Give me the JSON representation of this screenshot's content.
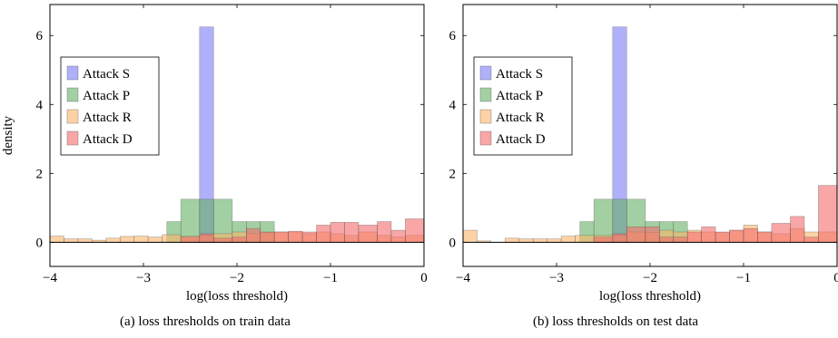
{
  "chart_data": [
    {
      "type": "histogram",
      "caption": "(a) loss thresholds on train data",
      "xlabel": "log(loss threshold)",
      "ylabel": "density",
      "xlim": [
        -4,
        0
      ],
      "ylim": [
        -0.7,
        6.9
      ],
      "xticks": [
        -4,
        -3,
        -2,
        -1,
        0
      ],
      "xtick_labels": [
        "−4",
        "−3",
        "−2",
        "−1",
        "0"
      ],
      "yticks": [
        0,
        2,
        4,
        6
      ],
      "ytick_labels": [
        "0",
        "2",
        "4",
        "6"
      ],
      "legend_position": "left",
      "series": [
        {
          "name": "Attack S",
          "color": "#7b7bf7",
          "bins": [
            [
              -2.4,
              -2.25,
              6.25
            ]
          ]
        },
        {
          "name": "Attack P",
          "color": "#66b066",
          "bins": [
            [
              -2.75,
              -2.6,
              0.6
            ],
            [
              -2.6,
              -2.4,
              1.25
            ],
            [
              -2.4,
              -2.25,
              1.25
            ],
            [
              -2.25,
              -2.05,
              1.25
            ],
            [
              -2.05,
              -1.9,
              0.6
            ],
            [
              -1.9,
              -1.75,
              0.6
            ],
            [
              -1.75,
              -1.6,
              0.6
            ]
          ]
        },
        {
          "name": "Attack R",
          "color": "#fcb56b",
          "bins": [
            [
              -4.0,
              -3.85,
              0.18
            ],
            [
              -3.85,
              -3.7,
              0.1
            ],
            [
              -3.7,
              -3.55,
              0.1
            ],
            [
              -3.55,
              -3.4,
              0.06
            ],
            [
              -3.4,
              -3.25,
              0.12
            ],
            [
              -3.25,
              -3.1,
              0.17
            ],
            [
              -3.1,
              -2.95,
              0.18
            ],
            [
              -2.95,
              -2.8,
              0.15
            ],
            [
              -2.8,
              -2.6,
              0.22
            ],
            [
              -2.6,
              -2.4,
              0.18
            ],
            [
              -2.4,
              -2.25,
              0.2
            ],
            [
              -2.25,
              -2.05,
              0.25
            ],
            [
              -2.05,
              -1.9,
              0.3
            ],
            [
              -1.9,
              -1.75,
              0.25
            ],
            [
              -1.75,
              -1.6,
              0.28
            ],
            [
              -1.6,
              -1.45,
              0.3
            ],
            [
              -1.45,
              -1.3,
              0.3
            ],
            [
              -1.3,
              -1.15,
              0.25
            ],
            [
              -1.15,
              -1.0,
              0.3
            ],
            [
              -1.0,
              -0.85,
              0.25
            ],
            [
              -0.85,
              -0.7,
              0.2
            ],
            [
              -0.7,
              -0.5,
              0.3
            ],
            [
              -0.5,
              -0.35,
              0.2
            ],
            [
              -0.35,
              -0.2,
              0.15
            ],
            [
              -0.2,
              0.0,
              0.2
            ]
          ]
        },
        {
          "name": "Attack D",
          "color": "#f46a6a",
          "bins": [
            [
              -2.6,
              -2.4,
              0.15
            ],
            [
              -2.4,
              -2.25,
              0.25
            ],
            [
              -2.25,
              -2.05,
              0.12
            ],
            [
              -2.05,
              -1.9,
              0.15
            ],
            [
              -1.9,
              -1.75,
              0.4
            ],
            [
              -1.75,
              -1.6,
              0.3
            ],
            [
              -1.6,
              -1.45,
              0.3
            ],
            [
              -1.45,
              -1.3,
              0.32
            ],
            [
              -1.3,
              -1.15,
              0.3
            ],
            [
              -1.15,
              -1.0,
              0.5
            ],
            [
              -1.0,
              -0.85,
              0.58
            ],
            [
              -0.85,
              -0.7,
              0.58
            ],
            [
              -0.7,
              -0.5,
              0.5
            ],
            [
              -0.5,
              -0.35,
              0.6
            ],
            [
              -0.35,
              -0.2,
              0.35
            ],
            [
              -0.2,
              0.0,
              0.68
            ]
          ]
        }
      ]
    },
    {
      "type": "histogram",
      "caption": "(b) loss thresholds on test data",
      "xlabel": "log(loss threshold)",
      "ylabel": "",
      "xlim": [
        -4,
        0
      ],
      "ylim": [
        -0.7,
        6.9
      ],
      "xticks": [
        -4,
        -3,
        -2,
        -1,
        0
      ],
      "xtick_labels": [
        "−4",
        "−3",
        "−2",
        "−1",
        "0"
      ],
      "yticks": [
        0,
        2,
        4,
        6
      ],
      "ytick_labels": [
        "0",
        "2",
        "4",
        "6"
      ],
      "legend_position": "left",
      "series": [
        {
          "name": "Attack S",
          "color": "#7b7bf7",
          "bins": [
            [
              -2.4,
              -2.25,
              6.25
            ]
          ]
        },
        {
          "name": "Attack P",
          "color": "#66b066",
          "bins": [
            [
              -2.75,
              -2.6,
              0.6
            ],
            [
              -2.6,
              -2.4,
              1.25
            ],
            [
              -2.4,
              -2.25,
              1.25
            ],
            [
              -2.25,
              -2.05,
              1.25
            ],
            [
              -2.05,
              -1.9,
              0.6
            ],
            [
              -1.9,
              -1.75,
              0.6
            ],
            [
              -1.75,
              -1.6,
              0.6
            ]
          ]
        },
        {
          "name": "Attack R",
          "color": "#fcb56b",
          "bins": [
            [
              -4.0,
              -3.85,
              0.35
            ],
            [
              -3.85,
              -3.7,
              0.04
            ],
            [
              -3.55,
              -3.4,
              0.12
            ],
            [
              -3.4,
              -3.25,
              0.1
            ],
            [
              -3.25,
              -3.1,
              0.1
            ],
            [
              -3.1,
              -2.95,
              0.1
            ],
            [
              -2.95,
              -2.8,
              0.18
            ],
            [
              -2.8,
              -2.6,
              0.2
            ],
            [
              -2.6,
              -2.4,
              0.2
            ],
            [
              -2.4,
              -2.25,
              0.2
            ],
            [
              -2.25,
              -2.05,
              0.3
            ],
            [
              -2.05,
              -1.9,
              0.28
            ],
            [
              -1.9,
              -1.75,
              0.35
            ],
            [
              -1.75,
              -1.6,
              0.3
            ],
            [
              -1.6,
              -1.45,
              0.35
            ],
            [
              -1.45,
              -1.3,
              0.3
            ],
            [
              -1.3,
              -1.15,
              0.28
            ],
            [
              -1.15,
              -1.0,
              0.35
            ],
            [
              -1.0,
              -0.85,
              0.5
            ],
            [
              -0.85,
              -0.7,
              0.3
            ],
            [
              -0.7,
              -0.5,
              0.25
            ],
            [
              -0.5,
              -0.35,
              0.4
            ],
            [
              -0.35,
              -0.2,
              0.3
            ],
            [
              -0.2,
              0.0,
              0.3
            ]
          ]
        },
        {
          "name": "Attack D",
          "color": "#f46a6a",
          "bins": [
            [
              -2.6,
              -2.4,
              0.15
            ],
            [
              -2.4,
              -2.25,
              0.25
            ],
            [
              -2.25,
              -2.05,
              0.45
            ],
            [
              -2.05,
              -1.9,
              0.45
            ],
            [
              -1.9,
              -1.75,
              0.15
            ],
            [
              -1.75,
              -1.6,
              0.15
            ],
            [
              -1.6,
              -1.45,
              0.3
            ],
            [
              -1.45,
              -1.3,
              0.45
            ],
            [
              -1.3,
              -1.15,
              0.3
            ],
            [
              -1.15,
              -1.0,
              0.35
            ],
            [
              -1.0,
              -0.85,
              0.4
            ],
            [
              -0.85,
              -0.7,
              0.3
            ],
            [
              -0.7,
              -0.5,
              0.55
            ],
            [
              -0.5,
              -0.35,
              0.75
            ],
            [
              -0.35,
              -0.2,
              0.15
            ],
            [
              -0.2,
              0.0,
              1.65
            ]
          ]
        }
      ]
    }
  ]
}
